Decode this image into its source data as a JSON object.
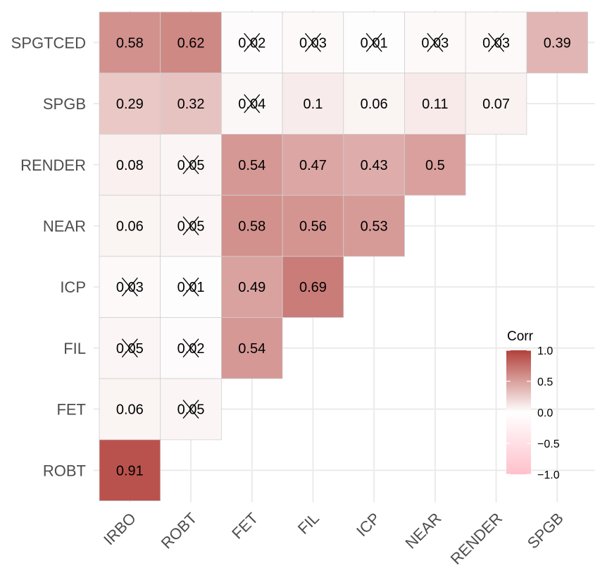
{
  "chart_data": {
    "type": "heatmap",
    "title": "",
    "x_categories": [
      "IRBO",
      "ROBT",
      "FET",
      "FIL",
      "ICP",
      "NEAR",
      "RENDER",
      "SPGB"
    ],
    "y_categories": [
      "SPGTCED",
      "SPGB",
      "RENDER",
      "NEAR",
      "ICP",
      "FIL",
      "FET",
      "ROBT"
    ],
    "cells": [
      {
        "row": "SPGTCED",
        "col": "IRBO",
        "value": 0.58,
        "label": "0.58",
        "insignificant": false
      },
      {
        "row": "SPGTCED",
        "col": "ROBT",
        "value": 0.62,
        "label": "0.62",
        "insignificant": false
      },
      {
        "row": "SPGTCED",
        "col": "FET",
        "value": 0.02,
        "label": "0.02",
        "insignificant": true
      },
      {
        "row": "SPGTCED",
        "col": "FIL",
        "value": 0.03,
        "label": "0.03",
        "insignificant": true
      },
      {
        "row": "SPGTCED",
        "col": "ICP",
        "value": 0.01,
        "label": "0.01",
        "insignificant": true
      },
      {
        "row": "SPGTCED",
        "col": "NEAR",
        "value": 0.03,
        "label": "0.03",
        "insignificant": true
      },
      {
        "row": "SPGTCED",
        "col": "RENDER",
        "value": 0.03,
        "label": "0.03",
        "insignificant": true
      },
      {
        "row": "SPGTCED",
        "col": "SPGB",
        "value": 0.39,
        "label": "0.39",
        "insignificant": false
      },
      {
        "row": "SPGB",
        "col": "IRBO",
        "value": 0.29,
        "label": "0.29",
        "insignificant": false
      },
      {
        "row": "SPGB",
        "col": "ROBT",
        "value": 0.32,
        "label": "0.32",
        "insignificant": false
      },
      {
        "row": "SPGB",
        "col": "FET",
        "value": 0.04,
        "label": "0.04",
        "insignificant": true
      },
      {
        "row": "SPGB",
        "col": "FIL",
        "value": 0.1,
        "label": "0.1",
        "insignificant": false
      },
      {
        "row": "SPGB",
        "col": "ICP",
        "value": 0.06,
        "label": "0.06",
        "insignificant": false
      },
      {
        "row": "SPGB",
        "col": "NEAR",
        "value": 0.11,
        "label": "0.11",
        "insignificant": false
      },
      {
        "row": "SPGB",
        "col": "RENDER",
        "value": 0.07,
        "label": "0.07",
        "insignificant": false
      },
      {
        "row": "RENDER",
        "col": "IRBO",
        "value": 0.08,
        "label": "0.08",
        "insignificant": false
      },
      {
        "row": "RENDER",
        "col": "ROBT",
        "value": 0.05,
        "label": "0.05",
        "insignificant": true
      },
      {
        "row": "RENDER",
        "col": "FET",
        "value": 0.54,
        "label": "0.54",
        "insignificant": false
      },
      {
        "row": "RENDER",
        "col": "FIL",
        "value": 0.47,
        "label": "0.47",
        "insignificant": false
      },
      {
        "row": "RENDER",
        "col": "ICP",
        "value": 0.43,
        "label": "0.43",
        "insignificant": false
      },
      {
        "row": "RENDER",
        "col": "NEAR",
        "value": 0.5,
        "label": "0.5",
        "insignificant": false
      },
      {
        "row": "NEAR",
        "col": "IRBO",
        "value": 0.06,
        "label": "0.06",
        "insignificant": false
      },
      {
        "row": "NEAR",
        "col": "ROBT",
        "value": 0.05,
        "label": "0.05",
        "insignificant": true
      },
      {
        "row": "NEAR",
        "col": "FET",
        "value": 0.58,
        "label": "0.58",
        "insignificant": false
      },
      {
        "row": "NEAR",
        "col": "FIL",
        "value": 0.56,
        "label": "0.56",
        "insignificant": false
      },
      {
        "row": "NEAR",
        "col": "ICP",
        "value": 0.53,
        "label": "0.53",
        "insignificant": false
      },
      {
        "row": "ICP",
        "col": "IRBO",
        "value": 0.03,
        "label": "0.03",
        "insignificant": true
      },
      {
        "row": "ICP",
        "col": "ROBT",
        "value": 0.01,
        "label": "0.01",
        "insignificant": true
      },
      {
        "row": "ICP",
        "col": "FET",
        "value": 0.49,
        "label": "0.49",
        "insignificant": false
      },
      {
        "row": "ICP",
        "col": "FIL",
        "value": 0.69,
        "label": "0.69",
        "insignificant": false
      },
      {
        "row": "FIL",
        "col": "IRBO",
        "value": 0.05,
        "label": "0.05",
        "insignificant": true
      },
      {
        "row": "FIL",
        "col": "ROBT",
        "value": 0.02,
        "label": "0.02",
        "insignificant": true
      },
      {
        "row": "FIL",
        "col": "FET",
        "value": 0.54,
        "label": "0.54",
        "insignificant": false
      },
      {
        "row": "FET",
        "col": "IRBO",
        "value": 0.06,
        "label": "0.06",
        "insignificant": false
      },
      {
        "row": "FET",
        "col": "ROBT",
        "value": 0.05,
        "label": "0.05",
        "insignificant": true
      },
      {
        "row": "ROBT",
        "col": "IRBO",
        "value": 0.91,
        "label": "0.91",
        "insignificant": false
      }
    ],
    "legend": {
      "title": "Corr",
      "ticks": [
        "1.0",
        "0.5",
        "0.0",
        "−0.5",
        "−1.0"
      ],
      "tick_values": [
        1.0,
        0.5,
        0.0,
        -0.5,
        -1.0
      ],
      "range": [
        -1.0,
        1.0
      ],
      "placement": "bottom-right"
    },
    "grid": true
  },
  "colors": {
    "high": "#B2413B",
    "mid": "#FFFFFF",
    "low": "#FFC0CB",
    "grid": "#EBEBEB",
    "cell_border": "#D0D0D0",
    "tick_text": "#4D4D4D",
    "cross": "#000000"
  }
}
